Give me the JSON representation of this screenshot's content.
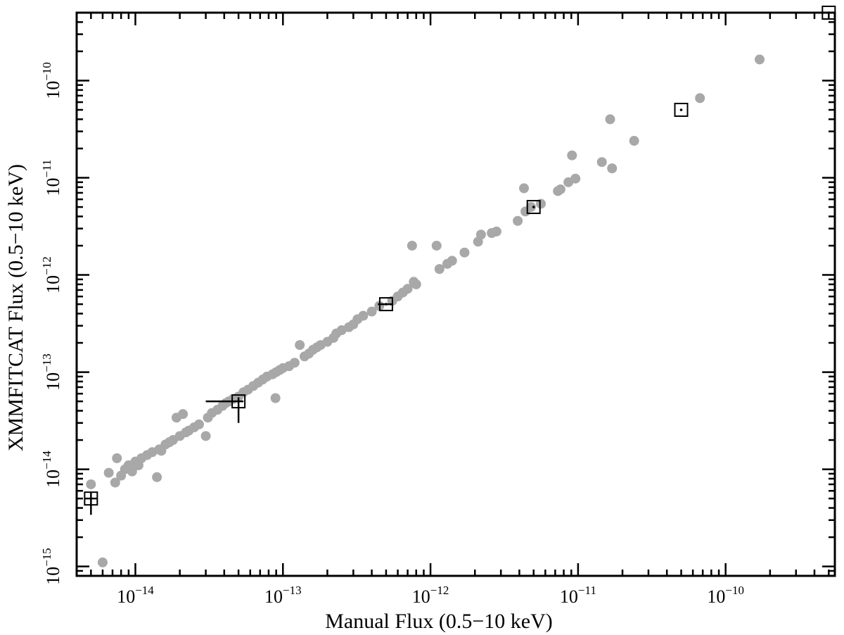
{
  "chart_data": {
    "type": "scatter",
    "xlabel": "Manual Flux (0.5−10 keV)",
    "ylabel": "XMMFITCAT Flux (0.5−10 keV)",
    "x_scale": "log",
    "y_scale": "log",
    "xlim": [
      4e-15,
      5.5e-10
    ],
    "ylim": [
      8e-16,
      5e-10
    ],
    "grid": false,
    "x_tick_labels": [
      "10−14",
      "10−13",
      "10−12",
      "10−11",
      "10−10"
    ],
    "y_tick_labels": [
      "10−15",
      "10−14",
      "10−13",
      "10−12",
      "10−11",
      "10−10"
    ],
    "colors": {
      "points": "#a8a8a8",
      "markers": "#000000"
    },
    "series": [
      {
        "marker": "filled-circle",
        "color": "#a8a8a8",
        "x": [
          6e-15,
          5e-15,
          6.6e-15,
          7.3e-15,
          7.5e-15,
          8e-15,
          8.5e-15,
          9e-15,
          9.5e-15,
          1e-14,
          1.05e-14,
          1.1e-14,
          1.2e-14,
          1.3e-14,
          1.4e-14,
          1.45e-14,
          1.5e-14,
          1.6e-14,
          1.7e-14,
          1.8e-14,
          1.9e-14,
          2e-14,
          2.1e-14,
          2.2e-14,
          2.3e-14,
          2.5e-14,
          2.7e-14,
          3e-14,
          3.1e-14,
          3.3e-14,
          3.6e-14,
          3.9e-14,
          4.1e-14,
          4.3e-14,
          4.6e-14,
          5e-14,
          5.4e-14,
          5.8e-14,
          6.3e-14,
          6.8e-14,
          7.3e-14,
          7.8e-14,
          8.5e-14,
          8.9e-14,
          9e-14,
          9.5e-14,
          1e-13,
          1.1e-13,
          1.2e-13,
          1.3e-13,
          1.4e-13,
          1.5e-13,
          1.6e-13,
          1.7e-13,
          1.8e-13,
          2e-13,
          2.2e-13,
          2.3e-13,
          2.5e-13,
          2.8e-13,
          3e-13,
          3.2e-13,
          3.5e-13,
          4e-13,
          4.5e-13,
          5.5e-13,
          6e-13,
          6.5e-13,
          7e-13,
          7.5e-13,
          7.7e-13,
          8e-13,
          1.1e-12,
          1.15e-12,
          1.3e-12,
          1.4e-12,
          1.7e-12,
          2.1e-12,
          2.2e-12,
          2.6e-12,
          2.8e-12,
          3.9e-12,
          4.3e-12,
          4.4e-12,
          4.8e-12,
          5.6e-12,
          7.3e-12,
          7.6e-12,
          8.6e-12,
          9.1e-12,
          9.6e-12,
          1.45e-11,
          1.65e-11,
          1.7e-11,
          2.4e-11,
          6.7e-11,
          1.7e-10
        ],
        "y": [
          1.1e-15,
          7e-15,
          9.2e-15,
          7.3e-15,
          1.3e-14,
          8.6e-15,
          1e-14,
          1.1e-14,
          9.5e-15,
          1.2e-14,
          1.1e-14,
          1.3e-14,
          1.4e-14,
          1.5e-14,
          8.3e-15,
          1.6e-14,
          1.55e-14,
          1.8e-14,
          1.9e-14,
          2e-14,
          3.4e-14,
          2.2e-14,
          3.7e-14,
          2.4e-14,
          2.5e-14,
          2.7e-14,
          2.9e-14,
          2.2e-14,
          3.4e-14,
          3.8e-14,
          4.1e-14,
          4.5e-14,
          4.8e-14,
          5e-14,
          5.3e-14,
          5.6e-14,
          6.2e-14,
          6.6e-14,
          7.2e-14,
          7.8e-14,
          8.4e-14,
          9e-14,
          9.5e-14,
          5.4e-14,
          1e-13,
          1.05e-13,
          1.1e-13,
          1.15e-13,
          1.25e-13,
          1.9e-13,
          1.45e-13,
          1.55e-13,
          1.7e-13,
          1.8e-13,
          1.9e-13,
          2.05e-13,
          2.25e-13,
          2.5e-13,
          2.7e-13,
          2.9e-13,
          3.1e-13,
          3.5e-13,
          3.8e-13,
          4.2e-13,
          4.8e-13,
          5.4e-13,
          6e-13,
          6.6e-13,
          7.2e-13,
          2e-12,
          8.5e-13,
          8e-13,
          2e-12,
          1.15e-12,
          1.3e-12,
          1.4e-12,
          1.7e-12,
          2.2e-12,
          2.6e-12,
          2.7e-12,
          2.8e-12,
          3.6e-12,
          7.8e-12,
          4.5e-12,
          5e-12,
          5.4e-12,
          7.3e-12,
          7.6e-12,
          9e-12,
          1.7e-11,
          9.8e-12,
          1.45e-11,
          4e-11,
          1.25e-11,
          2.4e-11,
          6.6e-11,
          1.65e-10
        ]
      },
      {
        "marker": "open-square-with-error-bars",
        "color": "#000000",
        "x": [
          5e-15,
          5e-14,
          5e-13,
          5e-12,
          5e-11,
          5e-10
        ],
        "y": [
          5e-15,
          5e-14,
          5e-13,
          5e-12,
          5e-11,
          5e-10
        ],
        "x_err_low": [
          4.5e-15,
          3e-14,
          4.4e-13,
          null,
          null,
          null
        ],
        "x_err_high": [
          5.5e-15,
          5.4e-14,
          5.5e-13,
          null,
          null,
          null
        ],
        "y_err_low": [
          3.4e-15,
          3e-14,
          null,
          null,
          null,
          null
        ],
        "y_err_high": [
          5.8e-15,
          5.5e-14,
          null,
          null,
          null,
          null
        ]
      }
    ]
  }
}
